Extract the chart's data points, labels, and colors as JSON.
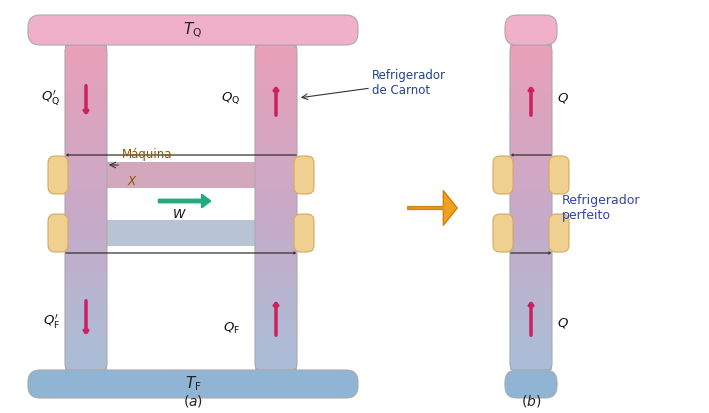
{
  "bg_color": "#ffffff",
  "pink_top": "#f2b8cc",
  "pink_col": "#e8a0b8",
  "blue_bot": "#9ab8d8",
  "blue_col": "#a8c0d8",
  "mid_col": "#c8aac8",
  "connector_color": "#f0d090",
  "connector_edge": "#d4aa60",
  "arrow_color": "#cc2060",
  "green_arrow": "#22aa80",
  "orange_arrow": "#f0a020",
  "text_color": "#000000",
  "label_blue": "#3344aa",
  "brown_label": "#996600",
  "res_edge": "#aaaaaa",
  "col_edge": "#aaaaaa",
  "title_a": "$(a)$",
  "title_b": "$(b)$",
  "TQ_label": "$T_\\mathrm{Q}$",
  "TF_label": "$T_\\mathrm{F}$",
  "QQp_label": "$Q^\\prime_\\mathrm{Q}$",
  "QQ_label": "$Q_\\mathrm{Q}$",
  "QFp_label": "$Q^\\prime_\\mathrm{F}$",
  "QF_label": "$Q_\\mathrm{F}$",
  "W_label": "$W$",
  "Q_label": "$Q$",
  "maquina_line1": "Máquina",
  "maquina_line2": "$X$",
  "refrig_carnot": "Refrigerador\nde Carnot",
  "refrig_perfeito": "Refrigerador\nperfeito"
}
